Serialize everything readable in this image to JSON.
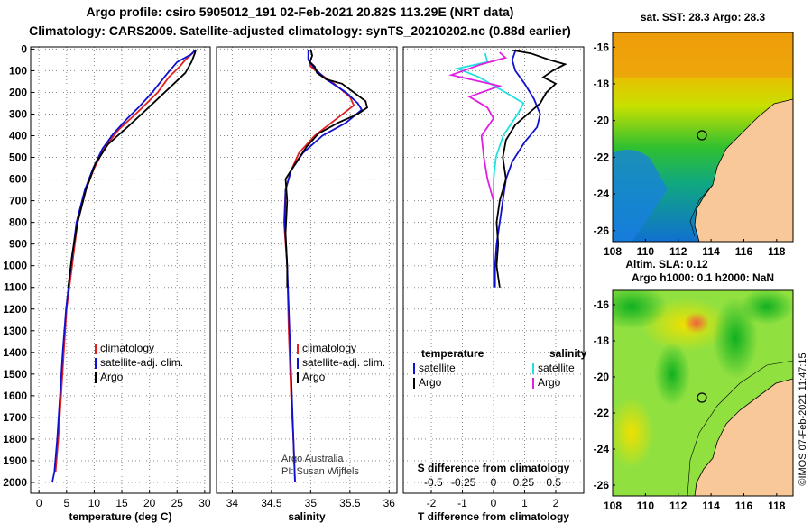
{
  "title_line1": "Argo profile: csiro 5905012_191 02-Feb-2021 20.82S 113.29E (NRT data)",
  "title_line2": "Climatology: CARS2009. Satellite-adjusted climatology: synTS_20210202.nc (0.88d earlier)",
  "colors": {
    "climatology": "#e02020",
    "satellite": "#1010d0",
    "argo": "#000000",
    "sal_satellite": "#20e0e0",
    "sal_argo": "#e020e0"
  },
  "chart_data": [
    {
      "type": "line",
      "title": "",
      "xlabel": "temperature (deg C)",
      "ylabel": "",
      "xlim": [
        -1.5,
        31
      ],
      "ylim": [
        2050,
        -10
      ],
      "xticks": [
        0,
        5,
        10,
        15,
        20,
        25,
        30
      ],
      "yticks": [
        0,
        100,
        200,
        300,
        400,
        500,
        600,
        700,
        800,
        900,
        1000,
        1100,
        1200,
        1300,
        1400,
        1500,
        1600,
        1700,
        1800,
        1900,
        2000
      ],
      "legend": [
        "climatology",
        "satellite-adj. clim.",
        "Argo"
      ],
      "series": [
        {
          "name": "climatology",
          "points": [
            [
              28.2,
              5
            ],
            [
              27.8,
              20
            ],
            [
              26.5,
              50
            ],
            [
              25.5,
              80
            ],
            [
              23.5,
              130
            ],
            [
              21.5,
              200
            ],
            [
              19.5,
              250
            ],
            [
              17.5,
              300
            ],
            [
              14.5,
              370
            ],
            [
              12,
              450
            ],
            [
              10,
              550
            ],
            [
              8.5,
              650
            ],
            [
              7,
              800
            ],
            [
              6,
              1000
            ],
            [
              5,
              1200
            ],
            [
              4.5,
              1400
            ],
            [
              4,
              1600
            ],
            [
              3.5,
              1800
            ],
            [
              3,
              1950
            ]
          ]
        },
        {
          "name": "satellite-adj. clim.",
          "points": [
            [
              28.3,
              5
            ],
            [
              27.5,
              25
            ],
            [
              25,
              60
            ],
            [
              23,
              120
            ],
            [
              20.5,
              200
            ],
            [
              18,
              270
            ],
            [
              16,
              320
            ],
            [
              13.5,
              390
            ],
            [
              11.5,
              460
            ],
            [
              9.8,
              550
            ],
            [
              8.3,
              650
            ],
            [
              6.8,
              800
            ],
            [
              5.8,
              1000
            ],
            [
              4.9,
              1200
            ],
            [
              4.3,
              1400
            ],
            [
              3.8,
              1600
            ],
            [
              3.3,
              1800
            ],
            [
              2.8,
              1950
            ],
            [
              2.4,
              2000
            ]
          ]
        },
        {
          "name": "Argo",
          "points": [
            [
              28.4,
              2
            ],
            [
              28.2,
              20
            ],
            [
              27.6,
              60
            ],
            [
              26.5,
              110
            ],
            [
              24,
              170
            ],
            [
              21.5,
              230
            ],
            [
              19,
              290
            ],
            [
              16,
              360
            ],
            [
              12.5,
              440
            ],
            [
              10.2,
              530
            ],
            [
              8.5,
              650
            ],
            [
              7,
              800
            ],
            [
              6,
              950
            ],
            [
              5.3,
              1100
            ]
          ]
        }
      ]
    },
    {
      "type": "line",
      "title": "",
      "xlabel": "salinity",
      "ylabel": "",
      "xlim": [
        33.8,
        36.1
      ],
      "ylim": [
        2050,
        -10
      ],
      "xticks": [
        34,
        34.5,
        35,
        35.5,
        36
      ],
      "xticklabels": [
        "34",
        "34.5",
        "35",
        "35.5",
        "36"
      ],
      "legend": [
        "climatology",
        "satellite-adj. clim.",
        "Argo"
      ],
      "annotation": [
        "Argo Australia",
        "PI: Susan Wijffels"
      ],
      "series": [
        {
          "name": "climatology",
          "points": [
            [
              34.98,
              5
            ],
            [
              34.97,
              40
            ],
            [
              35.0,
              80
            ],
            [
              35.1,
              110
            ],
            [
              35.3,
              160
            ],
            [
              35.5,
              220
            ],
            [
              35.55,
              260
            ],
            [
              35.3,
              330
            ],
            [
              35.05,
              400
            ],
            [
              34.85,
              480
            ],
            [
              34.75,
              560
            ],
            [
              34.68,
              650
            ],
            [
              34.66,
              800
            ],
            [
              34.7,
              1000
            ],
            [
              34.72,
              1300
            ],
            [
              34.75,
              1600
            ],
            [
              34.78,
              1800
            ],
            [
              34.8,
              2000
            ]
          ]
        },
        {
          "name": "satellite-adj. clim.",
          "points": [
            [
              34.97,
              5
            ],
            [
              34.97,
              50
            ],
            [
              35.05,
              90
            ],
            [
              35.2,
              140
            ],
            [
              35.45,
              200
            ],
            [
              35.6,
              250
            ],
            [
              35.65,
              280
            ],
            [
              35.45,
              340
            ],
            [
              35.15,
              400
            ],
            [
              34.9,
              480
            ],
            [
              34.75,
              560
            ],
            [
              34.68,
              650
            ],
            [
              34.67,
              800
            ],
            [
              34.7,
              1000
            ],
            [
              34.73,
              1300
            ],
            [
              34.76,
              1600
            ],
            [
              34.78,
              1800
            ],
            [
              34.8,
              2000
            ]
          ]
        },
        {
          "name": "Argo",
          "points": [
            [
              35.0,
              2
            ],
            [
              35.02,
              30
            ],
            [
              34.99,
              60
            ],
            [
              35.05,
              80
            ],
            [
              35.08,
              110
            ],
            [
              35.2,
              140
            ],
            [
              35.4,
              160
            ],
            [
              35.55,
              200
            ],
            [
              35.7,
              240
            ],
            [
              35.72,
              270
            ],
            [
              35.6,
              300
            ],
            [
              35.35,
              340
            ],
            [
              35.1,
              390
            ],
            [
              34.95,
              450
            ],
            [
              34.82,
              520
            ],
            [
              34.75,
              560
            ],
            [
              34.68,
              600
            ],
            [
              34.7,
              700
            ],
            [
              34.68,
              850
            ],
            [
              34.7,
              1000
            ],
            [
              34.7,
              1100
            ]
          ]
        }
      ]
    },
    {
      "type": "line",
      "title": "",
      "xlabel": "T difference from climatology",
      "xlabel2": "S difference from climatology",
      "ylabel": "",
      "xlim": [
        -2.9,
        2.9
      ],
      "ylim": [
        2050,
        -10
      ],
      "xticks": [
        -2,
        -1,
        0,
        1,
        2
      ],
      "xticks2": [
        -0.5,
        -0.25,
        0,
        0.25,
        0.5
      ],
      "xticks2_labels": [
        "-0.5",
        "-0.25",
        "0",
        "0.25",
        "0.5"
      ],
      "legend_title_t": "temperature",
      "legend_title_s": "salinity",
      "legend": [
        "satellite",
        "Argo",
        "satellite",
        "Argo"
      ],
      "series": [
        {
          "name": "T satellite",
          "points": [
            [
              0.7,
              10
            ],
            [
              0.6,
              50
            ],
            [
              0.7,
              100
            ],
            [
              1.0,
              160
            ],
            [
              1.3,
              230
            ],
            [
              1.5,
              300
            ],
            [
              1.4,
              360
            ],
            [
              1.0,
              430
            ],
            [
              0.6,
              520
            ],
            [
              0.4,
              600
            ],
            [
              0.3,
              700
            ],
            [
              0.2,
              800
            ],
            [
              0.1,
              900
            ],
            [
              0.05,
              1000
            ],
            [
              0.05,
              1100
            ]
          ]
        },
        {
          "name": "T Argo",
          "points": [
            [
              0.6,
              5
            ],
            [
              1.2,
              20
            ],
            [
              1.8,
              50
            ],
            [
              2.3,
              70
            ],
            [
              1.9,
              100
            ],
            [
              1.6,
              130
            ],
            [
              2.0,
              160
            ],
            [
              1.7,
              200
            ],
            [
              1.5,
              250
            ],
            [
              1.1,
              300
            ],
            [
              0.7,
              350
            ],
            [
              0.4,
              420
            ],
            [
              0.3,
              500
            ],
            [
              0.4,
              600
            ],
            [
              0.2,
              700
            ],
            [
              0.1,
              800
            ],
            [
              0.15,
              900
            ],
            [
              0.1,
              1000
            ],
            [
              0.2,
              1100
            ]
          ]
        },
        {
          "name": "S satellite",
          "points": [
            [
              -0.07,
              20
            ],
            [
              -0.05,
              60
            ],
            [
              -0.3,
              90
            ],
            [
              -0.12,
              130
            ],
            [
              0.1,
              200
            ],
            [
              0.25,
              250
            ],
            [
              0.2,
              300
            ],
            [
              0.08,
              400
            ],
            [
              0.02,
              500
            ],
            [
              0.0,
              600
            ],
            [
              0.0,
              700
            ],
            [
              0.0,
              800
            ],
            [
              0.0,
              1000
            ],
            [
              0.0,
              1100
            ]
          ]
        },
        {
          "name": "S Argo",
          "points": [
            [
              0.05,
              15
            ],
            [
              0.1,
              40
            ],
            [
              -0.1,
              70
            ],
            [
              -0.35,
              120
            ],
            [
              0.05,
              170
            ],
            [
              -0.2,
              220
            ],
            [
              -0.05,
              270
            ],
            [
              0.0,
              320
            ],
            [
              -0.1,
              400
            ],
            [
              -0.08,
              500
            ],
            [
              -0.05,
              600
            ],
            [
              0.0,
              700
            ],
            [
              0.0,
              800
            ],
            [
              0.0,
              900
            ],
            [
              0.0,
              1000
            ],
            [
              0.0,
              1100
            ]
          ]
        }
      ]
    },
    {
      "type": "heatmap",
      "title": "sat. SST: 28.3 Argo: 28.3",
      "xlim": [
        108,
        119
      ],
      "ylim": [
        -26.6,
        -15.2
      ],
      "xticks": [
        108,
        110,
        112,
        114,
        116,
        118
      ],
      "yticks": [
        -16,
        -18,
        -20,
        -22,
        -24,
        -26
      ],
      "marker": {
        "lon": 113.29,
        "lat": -20.82
      }
    },
    {
      "type": "heatmap",
      "title": "Altim. SLA: 0.12",
      "subtitle": "Argo h1000: 0.1 h2000: NaN",
      "xlim": [
        108,
        119
      ],
      "ylim": [
        -26.6,
        -15.2
      ],
      "xticks": [
        108,
        110,
        112,
        114,
        116,
        118
      ],
      "yticks": [
        -16,
        -18,
        -20,
        -22,
        -24,
        -26
      ],
      "marker": {
        "lon": 113.29,
        "lat": -20.82
      }
    }
  ],
  "footer": "©IMOS 07-Feb-2021 11:47:15"
}
